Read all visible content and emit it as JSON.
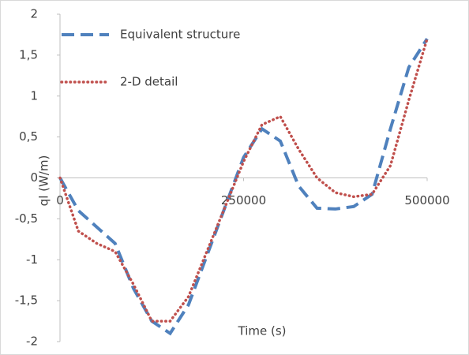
{
  "chart_data": {
    "type": "line",
    "x_label": "Time (s)",
    "y_label": "ql (W/m)",
    "x": [
      0,
      25000,
      50000,
      75000,
      100000,
      125000,
      150000,
      175000,
      200000,
      225000,
      250000,
      275000,
      300000,
      325000,
      350000,
      375000,
      400000,
      425000,
      450000,
      475000,
      500000
    ],
    "series": [
      {
        "name": "Equivalent structure",
        "color": "#4f81bd",
        "style": "dashed",
        "values": [
          0,
          -0.4,
          -0.6,
          -0.8,
          -1.35,
          -1.75,
          -1.9,
          -1.55,
          -0.95,
          -0.35,
          0.25,
          0.6,
          0.45,
          -0.1,
          -0.37,
          -0.38,
          -0.35,
          -0.2,
          0.6,
          1.35,
          1.7
        ]
      },
      {
        "name": "2-D detail",
        "color": "#c0504d",
        "style": "dotted",
        "values": [
          0,
          -0.65,
          -0.8,
          -0.9,
          -1.3,
          -1.75,
          -1.75,
          -1.45,
          -0.9,
          -0.35,
          0.2,
          0.65,
          0.75,
          0.35,
          0.0,
          -0.18,
          -0.23,
          -0.2,
          0.15,
          0.95,
          1.7
        ]
      }
    ],
    "xlim": [
      0,
      500000
    ],
    "xticks": [
      0,
      250000,
      500000
    ],
    "ylim": [
      -2,
      2
    ],
    "yticks": [
      -2,
      {
        "value": -1.5,
        "label": "-1,5"
      },
      -1,
      {
        "value": -0.5,
        "label": "-0,5"
      },
      0,
      {
        "value": 0.5,
        "label": "0,5"
      },
      1,
      {
        "value": 1.5,
        "label": "1,5"
      },
      2
    ],
    "grid": false,
    "legend": "top-left"
  }
}
